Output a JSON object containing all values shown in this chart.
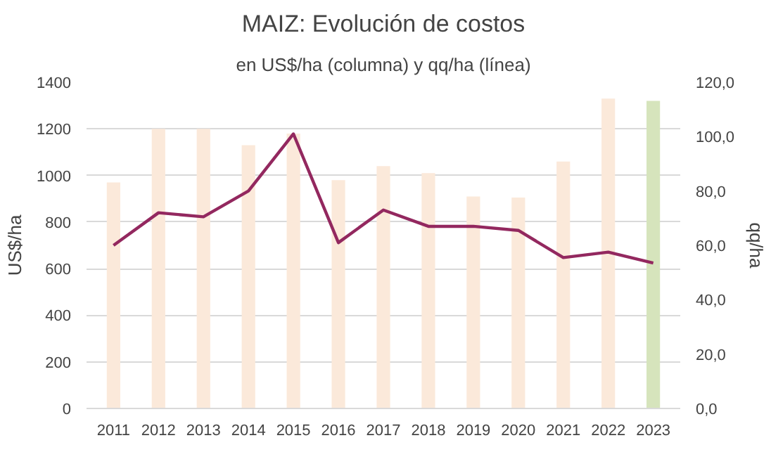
{
  "chart_data": {
    "type": "bar",
    "title": "MAIZ: Evolución de costos",
    "subtitle": "en US$/ha (columna) y qq/ha (línea)",
    "ylabel": "US$/ha",
    "y2label": "qq/ha",
    "categories": [
      "2011",
      "2012",
      "2013",
      "2014",
      "2015",
      "2016",
      "2017",
      "2018",
      "2019",
      "2020",
      "2021",
      "2022",
      "2023"
    ],
    "series": [
      {
        "colors": [
          "#fbe9da",
          "#fbe9da",
          "#fbe9da",
          "#fbe9da",
          "#fbe9da",
          "#fbe9da",
          "#fbe9da",
          "#fbe9da",
          "#fbe9da",
          "#fbe9da",
          "#fbe9da",
          "#fbe9da",
          "#d6e4bc"
        ],
        "values": [
          970,
          1200,
          1200,
          1130,
          1180,
          980,
          1040,
          1010,
          910,
          905,
          1060,
          1330,
          1320
        ]
      },
      {
        "type": "line",
        "axis": "y2",
        "color": "#93285f",
        "values": [
          60,
          72,
          70.5,
          80,
          101,
          61,
          73,
          67,
          67,
          65.5,
          55.5,
          57.5,
          53.5
        ]
      }
    ],
    "ylim": [
      0,
      1400
    ],
    "yticks": [
      0,
      200,
      400,
      600,
      800,
      1000,
      1200,
      1400
    ],
    "y2lim": [
      0,
      120
    ],
    "y2ticks": [
      {
        "value": 0,
        "label": "0,0"
      },
      {
        "value": 20,
        "label": "20,0"
      },
      {
        "value": 40,
        "label": "40,0"
      },
      {
        "value": 60,
        "label": "60,0"
      },
      {
        "value": 80,
        "label": "80,0"
      },
      {
        "value": 100,
        "label": "100,0"
      },
      {
        "value": 120,
        "label": "120,0"
      }
    ],
    "grid": "y"
  }
}
